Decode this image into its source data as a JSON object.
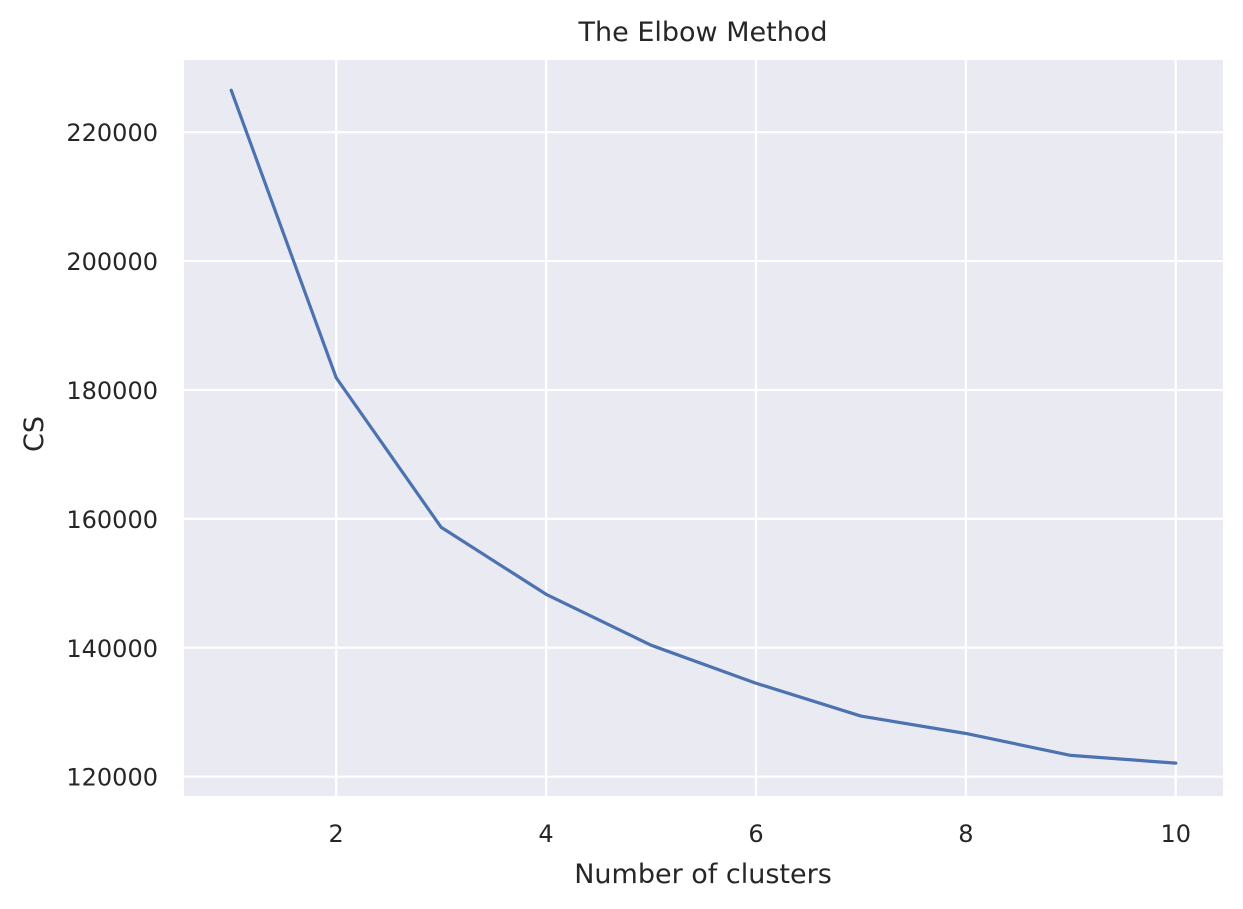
{
  "chart_data": {
    "type": "line",
    "title": "The Elbow Method",
    "xlabel": "Number of clusters",
    "ylabel": "CS",
    "x": [
      1,
      2,
      3,
      4,
      5,
      6,
      7,
      8,
      9,
      10
    ],
    "series": [
      {
        "values": [
          226500,
          181900,
          158700,
          148300,
          140400,
          134500,
          129400,
          126700,
          123300,
          122100
        ],
        "color": "#4c72b0"
      }
    ],
    "xlim": [
      0.55,
      10.45
    ],
    "ylim": [
      117000,
      231200
    ],
    "xticks": [
      2,
      4,
      6,
      8,
      10
    ],
    "yticks": [
      120000,
      140000,
      160000,
      180000,
      200000,
      220000
    ],
    "grid": true,
    "style": {
      "plot_background": "#eaeaf2",
      "grid_color": "#ffffff",
      "text_color": "#262626"
    }
  }
}
